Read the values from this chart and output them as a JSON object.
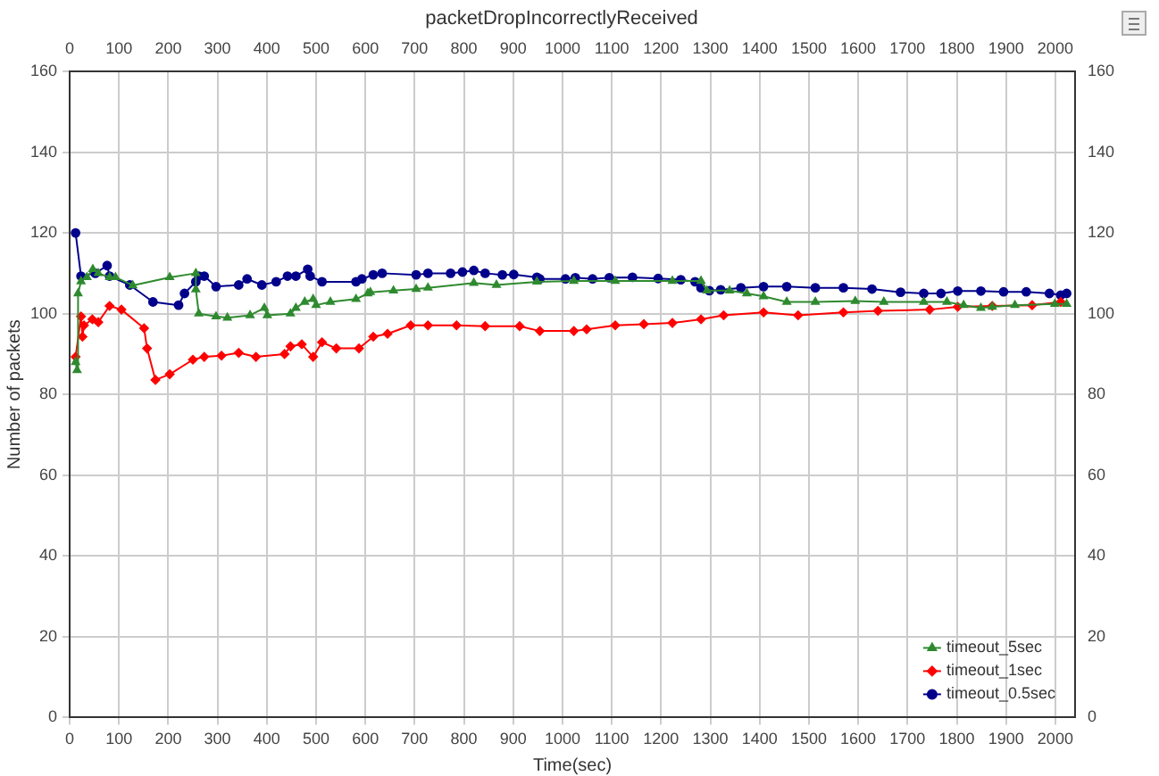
{
  "chart_data": {
    "type": "line",
    "title": "packetDropIncorrectlyReceived",
    "xlabel": "Time(sec)",
    "ylabel": "Number of packets",
    "xlim": [
      0,
      2040
    ],
    "xticks": [
      0,
      100,
      200,
      300,
      400,
      500,
      600,
      700,
      800,
      900,
      1000,
      1100,
      1200,
      1300,
      1400,
      1500,
      1600,
      1700,
      1800,
      1900,
      2000
    ],
    "x2lim": [
      0,
      2040
    ],
    "x2ticks": [
      0,
      100,
      200,
      300,
      400,
      500,
      600,
      700,
      800,
      900,
      1000,
      1100,
      1200,
      1300,
      1400,
      1500,
      1600,
      1700,
      1800,
      1900,
      2000
    ],
    "ylim": [
      0,
      160
    ],
    "yticks": [
      0,
      20,
      40,
      60,
      80,
      100,
      120,
      140,
      160
    ],
    "y2lim": [
      0,
      160
    ],
    "y2ticks": [
      0,
      20,
      40,
      60,
      80,
      100,
      120,
      140,
      160
    ],
    "grid": true,
    "legend": "bottom right",
    "line_style": "solid",
    "series": [
      {
        "name": "timeout_5sec",
        "color": "#2f8a2f",
        "marker": "triangle",
        "x": [
          12,
          15,
          17,
          23,
          35,
          47,
          58,
          81,
          93,
          128,
          203,
          256,
          256,
          262,
          297,
          320,
          366,
          395,
          401,
          448,
          459,
          477,
          494,
          500,
          529,
          581,
          605,
          610,
          657,
          703,
          727,
          820,
          866,
          948,
          1023,
          1107,
          1223,
          1281,
          1293,
          1339,
          1374,
          1408,
          1455,
          1513,
          1594,
          1652,
          1733,
          1780,
          1814,
          1849,
          1872,
          1918,
          1999,
          2023
        ],
        "values": [
          88,
          86,
          105,
          108,
          109,
          111,
          110,
          109,
          109,
          107,
          109,
          110,
          106,
          100,
          99.3,
          99,
          99.6,
          101.4,
          99.6,
          100,
          101.4,
          102.9,
          103.6,
          102.1,
          102.9,
          103.6,
          105,
          105.3,
          105.7,
          106.1,
          106.4,
          107.6,
          107.1,
          107.9,
          108.1,
          108.1,
          108.1,
          108.1,
          105.7,
          105.7,
          105,
          104.3,
          102.9,
          102.9,
          103.1,
          102.9,
          102.9,
          102.9,
          102.1,
          101.4,
          101.7,
          102.1,
          102.4,
          102.4
        ]
      },
      {
        "name": "timeout_1sec",
        "color": "#ff0000",
        "marker": "diamond",
        "x": [
          12,
          23,
          26,
          29,
          46,
          58,
          81,
          105,
          151,
          157,
          174,
          203,
          250,
          273,
          308,
          343,
          378,
          436,
          448,
          471,
          494,
          512,
          541,
          587,
          616,
          645,
          692,
          727,
          785,
          843,
          913,
          954,
          1023,
          1049,
          1107,
          1165,
          1223,
          1281,
          1327,
          1408,
          1478,
          1570,
          1640,
          1745,
          1802,
          1872,
          1953,
          2011
        ],
        "values": [
          89.3,
          99.3,
          94.3,
          97.1,
          98.6,
          97.9,
          101.9,
          101,
          96.4,
          91.4,
          83.6,
          85,
          88.6,
          89.3,
          89.6,
          90.3,
          89.3,
          90,
          91.9,
          92.4,
          89.3,
          92.9,
          91.4,
          91.4,
          94.3,
          95,
          97.1,
          97.1,
          97.1,
          96.9,
          96.9,
          95.7,
          95.7,
          96.1,
          97.1,
          97.4,
          97.7,
          98.6,
          99.6,
          100.3,
          99.6,
          100.3,
          100.7,
          101,
          101.7,
          101.9,
          102.1,
          102.9
        ]
      },
      {
        "name": "timeout_0.5sec",
        "color": "#00008b",
        "marker": "circle",
        "x": [
          12,
          23,
          52,
          76,
          81,
          122,
          169,
          221,
          233,
          256,
          262,
          273,
          297,
          343,
          360,
          390,
          419,
          442,
          459,
          483,
          488,
          512,
          581,
          593,
          616,
          634,
          703,
          727,
          773,
          797,
          820,
          843,
          878,
          901,
          948,
          954,
          1006,
          1026,
          1061,
          1095,
          1142,
          1194,
          1240,
          1269,
          1281,
          1298,
          1321,
          1362,
          1408,
          1455,
          1513,
          1570,
          1628,
          1686,
          1733,
          1768,
          1802,
          1849,
          1895,
          1941,
          1988,
          2011,
          2023
        ],
        "values": [
          120,
          109.3,
          110,
          111.9,
          109.3,
          107.1,
          102.9,
          102.1,
          105,
          107.9,
          109.3,
          109.3,
          106.7,
          107.1,
          108.6,
          107.1,
          107.9,
          109.3,
          109.3,
          111,
          109.3,
          107.9,
          107.9,
          108.6,
          109.6,
          110,
          109.6,
          110,
          110,
          110.3,
          110.7,
          110,
          109.6,
          109.7,
          109,
          108.6,
          108.6,
          108.9,
          108.6,
          108.9,
          109,
          108.7,
          108.4,
          107.9,
          106.4,
          105.7,
          105.9,
          106.4,
          106.7,
          106.7,
          106.4,
          106.4,
          106.1,
          105.3,
          105,
          105,
          105.6,
          105.6,
          105.4,
          105.4,
          105,
          104.6,
          105
        ]
      }
    ]
  }
}
